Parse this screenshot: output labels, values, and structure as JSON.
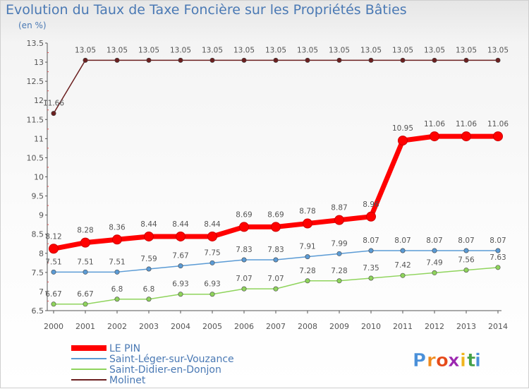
{
  "header": {
    "title": "Evolution du Taux de Taxe Foncière sur les Propriétés Bâties",
    "subtitle": "(en %)"
  },
  "chart_data": {
    "type": "line",
    "title": "Evolution du Taux de Taxe Foncière sur les Propriétés Bâties",
    "subtitle": "(en %)",
    "xlabel": "",
    "ylabel": "(en %)",
    "ylim": [
      6.5,
      13.5
    ],
    "yticks": [
      "6.5",
      "7",
      "7.5",
      "8",
      "8.5",
      "9",
      "9.5",
      "10",
      "10.5",
      "11",
      "11.5",
      "12",
      "12.5",
      "13",
      "13.5"
    ],
    "categories": [
      "2000",
      "2001",
      "2002",
      "2003",
      "2004",
      "2005",
      "2006",
      "2007",
      "2008",
      "2009",
      "2010",
      "2011",
      "2012",
      "2013",
      "2014"
    ],
    "grid": false,
    "legend_position": "bottom-left",
    "series": [
      {
        "name": "Molinet",
        "color": "#6b1f1f",
        "values": [
          11.66,
          13.05,
          13.05,
          13.05,
          13.05,
          13.05,
          13.05,
          13.05,
          13.05,
          13.05,
          13.05,
          13.05,
          13.05,
          13.05,
          13.05
        ],
        "labels": [
          "11.66",
          "13.05",
          "13.05",
          "13.05",
          "13.05",
          "13.05",
          "13.05",
          "13.05",
          "13.05",
          "13.05",
          "13.05",
          "13.05",
          "13.05",
          "13.05",
          "13.05"
        ]
      },
      {
        "name": "Saint-Didier-en-Donjon",
        "color": "#8fd45c",
        "values": [
          6.67,
          6.67,
          6.8,
          6.8,
          6.93,
          6.93,
          7.07,
          7.07,
          7.28,
          7.28,
          7.35,
          7.42,
          7.49,
          7.56,
          7.63
        ],
        "labels": [
          "6.67",
          "6.67",
          "6.8",
          "6.8",
          "6.93",
          "6.93",
          "7.07",
          "7.07",
          "7.28",
          "7.28",
          "7.35",
          "7.42",
          "7.49",
          "7.56",
          "7.63"
        ]
      },
      {
        "name": "Saint-Léger-sur-Vouzance",
        "color": "#5b9bd5",
        "values": [
          7.51,
          7.51,
          7.51,
          7.59,
          7.67,
          7.75,
          7.83,
          7.83,
          7.91,
          7.99,
          8.07,
          8.07,
          8.07,
          8.07,
          8.07
        ],
        "labels": [
          "7.51",
          "7.51",
          "7.51",
          "7.59",
          "7.67",
          "7.75",
          "7.83",
          "7.83",
          "7.91",
          "7.99",
          "8.07",
          "8.07",
          "8.07",
          "8.07",
          "8.07"
        ]
      },
      {
        "name": "LE PIN",
        "color": "#ff0000",
        "values": [
          8.12,
          8.28,
          8.36,
          8.44,
          8.44,
          8.44,
          8.69,
          8.69,
          8.78,
          8.87,
          8.96,
          10.95,
          11.06,
          11.06,
          11.06
        ],
        "labels": [
          "8.12",
          "8.28",
          "8.36",
          "8.44",
          "8.44",
          "8.44",
          "8.69",
          "8.69",
          "8.78",
          "8.87",
          "8.96",
          "10.95",
          "11.06",
          "11.06",
          "11.06"
        ]
      }
    ],
    "legend_order": [
      "LE PIN",
      "Saint-Léger-sur-Vouzance",
      "Saint-Didier-en-Donjon",
      "Molinet"
    ]
  },
  "logo": {
    "letters": [
      "P",
      "r",
      "o",
      "x",
      "i",
      "t",
      "i"
    ],
    "colors": [
      "#4a90d9",
      "#f08a1c",
      "#e64a19",
      "#9c27b0",
      "#f0b41c",
      "#43a047",
      "#4a90d9"
    ]
  }
}
